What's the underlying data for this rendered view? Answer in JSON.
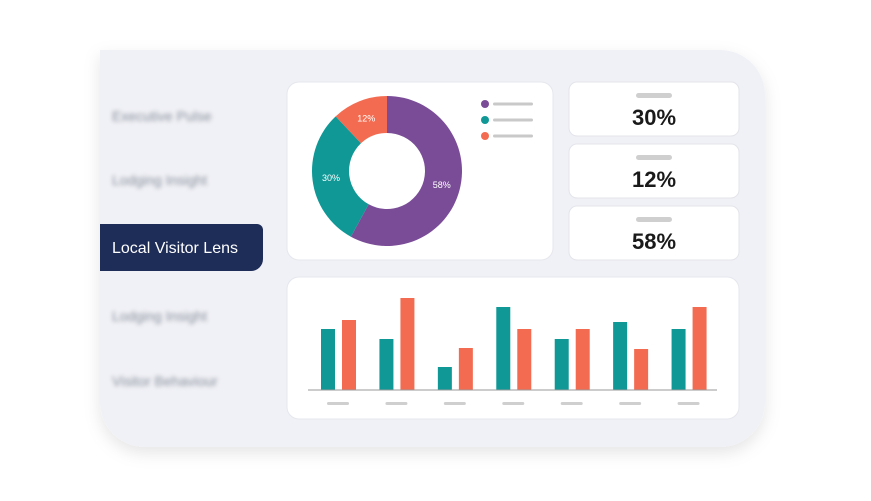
{
  "sidebar": {
    "items": [
      "Executive Pulse",
      "Lodging Insight",
      "Local Visitor Lens",
      "Lodging Insight",
      "Visitor Behaviour"
    ]
  },
  "stats": [
    "30%",
    "12%",
    "58%"
  ],
  "chart_data": [
    {
      "type": "donut",
      "values": [
        58,
        30,
        12
      ],
      "value_labels": [
        "58%",
        "30%",
        "12%"
      ],
      "colors": [
        "#7a4c98",
        "#0f9896",
        "#f36c51"
      ]
    },
    {
      "type": "bar",
      "categories": [
        null,
        null,
        null,
        null,
        null,
        null,
        null
      ],
      "ylim": [
        0,
        100
      ],
      "series": [
        {
          "color": "#0f9896",
          "values": [
            61,
            51,
            23,
            83,
            51,
            68,
            61
          ]
        },
        {
          "color": "#f36c51",
          "values": [
            70,
            92,
            42,
            61,
            61,
            41,
            83
          ]
        }
      ]
    }
  ]
}
